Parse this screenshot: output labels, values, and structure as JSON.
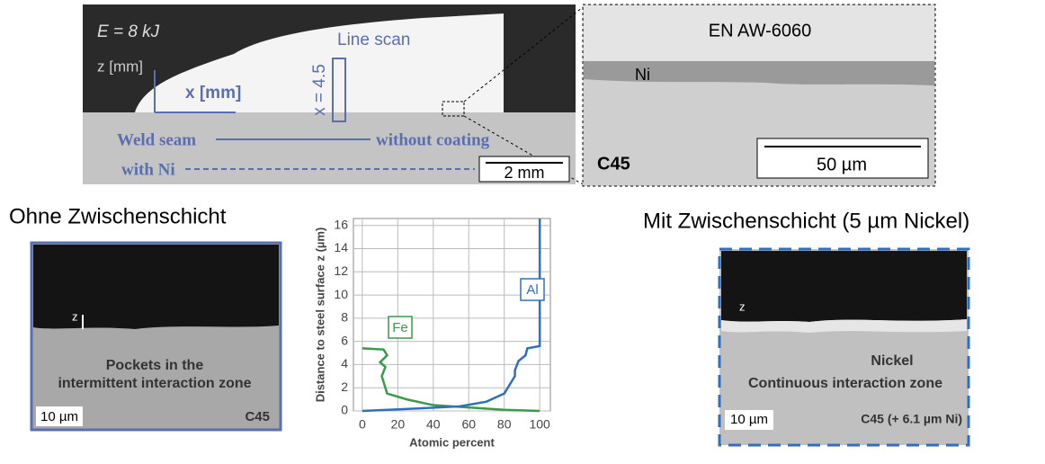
{
  "top_left": {
    "energy": "E = 8 kJ",
    "z_axis": "z [mm]",
    "x_axis": "x [mm]",
    "line_scan": "Line scan",
    "line_position": "x = 4.5",
    "weld_seam": "Weld seam",
    "without_coating": "without coating",
    "with_ni": "with Ni",
    "scale": "2 mm"
  },
  "top_right": {
    "aluminium": "EN AW-6060",
    "nickel": "Ni",
    "steel": "C45",
    "scale": "50 µm"
  },
  "left": {
    "heading": "Ohne Zwischenschicht",
    "z": "z",
    "caption": [
      "Pockets in the",
      "intermittent interaction zone"
    ],
    "scale": "10 µm",
    "steel": "C45"
  },
  "right": {
    "heading": "Mit Zwischenschicht (5 µm Nickel)",
    "z": "z",
    "nickel": "Nickel",
    "zone": "Continuous interaction zone",
    "scale": "10 µm",
    "steel": "C45 (+ 6.1 µm Ni)"
  },
  "chart_data": {
    "type": "line",
    "x_label": "Atomic percent",
    "y_label": "Distance to steel surface z (µm)",
    "xlim": [
      -5,
      106
    ],
    "xticks": [
      0,
      20,
      40,
      60,
      80,
      100
    ],
    "ylim": [
      0,
      16.6
    ],
    "yticks": [
      0,
      2,
      4,
      6,
      8,
      10,
      12,
      14,
      16
    ],
    "grid": true,
    "series": [
      {
        "name": "Fe",
        "color": "#3a9a4a",
        "x": [
          0,
          12,
          14,
          10,
          13,
          11,
          13,
          14,
          25,
          40,
          60,
          80,
          100
        ],
        "values": [
          5.4,
          5.3,
          4.8,
          4.2,
          3.8,
          3,
          2,
          1.5,
          1,
          0.5,
          0.3,
          0.1,
          0
        ]
      },
      {
        "name": "Al",
        "color": "#2f6fc0",
        "x": [
          100,
          100,
          93,
          92,
          88,
          86,
          86,
          84,
          80,
          70,
          55,
          30,
          0
        ],
        "values": [
          16.6,
          5.6,
          5.4,
          4.8,
          4.3,
          3.5,
          3,
          2.5,
          1.5,
          0.8,
          0.4,
          0.2,
          0
        ]
      }
    ]
  }
}
